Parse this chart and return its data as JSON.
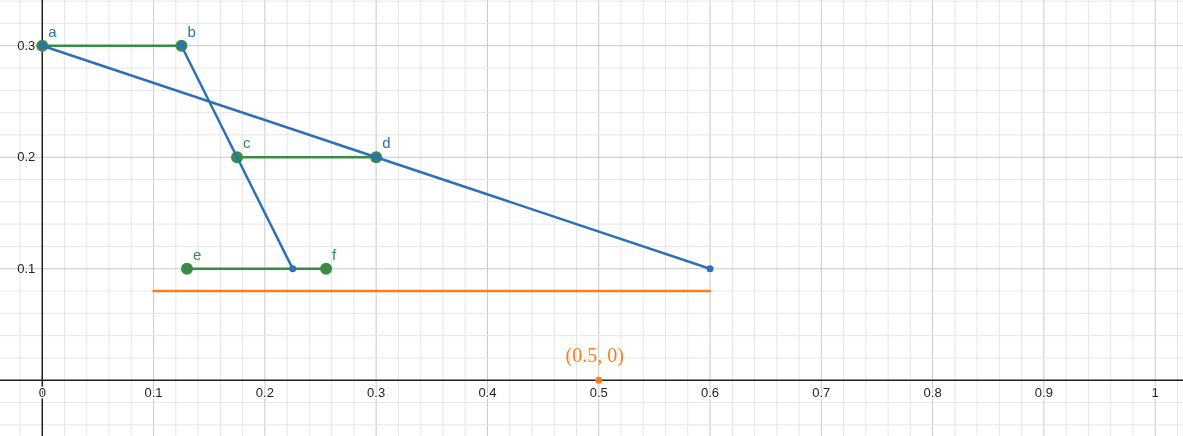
{
  "chart_data": {
    "type": "line",
    "xlim": [
      -0.038,
      1.025
    ],
    "ylim": [
      -0.05,
      0.341
    ],
    "xticks": [
      0,
      0.1,
      0.2,
      0.3,
      0.4,
      0.5,
      0.6,
      0.7,
      0.8,
      0.9,
      1
    ],
    "yticks": [
      0.1,
      0.2,
      0.3
    ],
    "grid": true,
    "series": [
      {
        "color": "#388c46",
        "x": [
          0,
          0.125
        ],
        "values": [
          0.3,
          0.3
        ],
        "marker": "circle"
      },
      {
        "color": "#388c46",
        "x": [
          0.175,
          0.3
        ],
        "values": [
          0.2,
          0.2
        ],
        "marker": "circle"
      },
      {
        "color": "#388c46",
        "x": [
          0.13,
          0.255
        ],
        "values": [
          0.1,
          0.1
        ],
        "marker": "circle"
      },
      {
        "color": "#2d70b3",
        "x": [
          0,
          0.3,
          0.6
        ],
        "values": [
          0.3,
          0.2,
          0.1
        ],
        "marker": "circle"
      },
      {
        "color": "#2d70b3",
        "x": [
          0.125,
          0.175,
          0.225
        ],
        "values": [
          0.3,
          0.2,
          0.1
        ],
        "marker": "none"
      },
      {
        "color": "#2d70b3",
        "type": "scatter",
        "x": [
          0.125,
          0.225
        ],
        "values": [
          0.3,
          0.1
        ],
        "marker": "circle"
      },
      {
        "color": "#fa7e19",
        "x": [
          0.1,
          0.6
        ],
        "values": [
          0.08,
          0.08
        ],
        "marker": "none"
      },
      {
        "color": "#fa7e19",
        "type": "scatter",
        "x": [
          0.5
        ],
        "values": [
          0
        ],
        "marker": "circle"
      }
    ],
    "annotations": [
      {
        "text": "a",
        "x": 0,
        "y": 0.3
      },
      {
        "text": "b",
        "x": 0.125,
        "y": 0.3
      },
      {
        "text": "c",
        "x": 0.175,
        "y": 0.2
      },
      {
        "text": "d",
        "x": 0.3,
        "y": 0.2
      },
      {
        "text": "e",
        "x": 0.13,
        "y": 0.1
      },
      {
        "text": "f",
        "x": 0.255,
        "y": 0.1
      },
      {
        "text": "(0.5, 0)",
        "x": 0.5,
        "y": 0
      }
    ]
  }
}
